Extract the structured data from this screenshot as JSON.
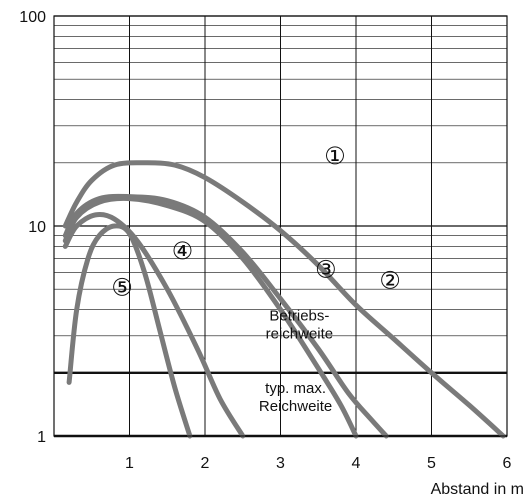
{
  "chart_data": {
    "type": "line",
    "title": "",
    "xlabel": "Abstand in m",
    "ylabel": "",
    "x_scale": "linear",
    "y_scale": "log",
    "xlim": [
      0,
      6
    ],
    "ylim": [
      1,
      100
    ],
    "x_ticks": [
      "1",
      "2",
      "3",
      "4",
      "5",
      "6"
    ],
    "y_ticks": [
      "1",
      "10",
      "100"
    ],
    "grid": true,
    "line_color": "#7a7a7a",
    "series": [
      {
        "name": "①",
        "x": [
          0.15,
          0.3,
          0.5,
          0.8,
          1.2,
          1.6,
          2.0,
          2.5,
          3.0,
          3.5,
          4.0,
          4.5,
          5.0,
          5.5,
          5.95
        ],
        "y": [
          10,
          13,
          16.5,
          19.5,
          20,
          19.5,
          17,
          13,
          9.5,
          6.5,
          4.2,
          2.9,
          2.0,
          1.4,
          1.0
        ]
      },
      {
        "name": "②",
        "x": [
          0.15,
          0.3,
          0.6,
          1.0,
          1.5,
          2.0,
          2.5,
          3.0,
          3.5,
          3.9,
          4.2,
          4.4
        ],
        "y": [
          9,
          11.5,
          13.5,
          13.8,
          13.2,
          11,
          7.5,
          4.5,
          2.6,
          1.6,
          1.2,
          1.0
        ]
      },
      {
        "name": "③",
        "x": [
          0.15,
          0.3,
          0.6,
          1.0,
          1.5,
          2.0,
          2.5,
          3.0,
          3.5,
          3.8,
          4.0
        ],
        "y": [
          8.5,
          11,
          13,
          13.5,
          12.5,
          10.5,
          7,
          4,
          2.1,
          1.4,
          1.0
        ]
      },
      {
        "name": "④",
        "x": [
          0.15,
          0.3,
          0.55,
          0.8,
          1.1,
          1.5,
          1.9,
          2.2,
          2.5
        ],
        "y": [
          8,
          10,
          11.3,
          10.8,
          8.5,
          5,
          2.6,
          1.5,
          1.0
        ]
      },
      {
        "name": "⑤",
        "x": [
          0.2,
          0.3,
          0.45,
          0.6,
          0.8,
          1.0,
          1.2,
          1.4,
          1.6,
          1.8
        ],
        "y": [
          1.8,
          4,
          7,
          9,
          10,
          9.2,
          6,
          3.2,
          1.7,
          1.0
        ]
      }
    ],
    "threshold_lines": [
      {
        "label": "Betriebs-\nreichweite",
        "y": 2
      },
      {
        "label": "typ. max.\nReichweite",
        "y": 1
      }
    ]
  }
}
